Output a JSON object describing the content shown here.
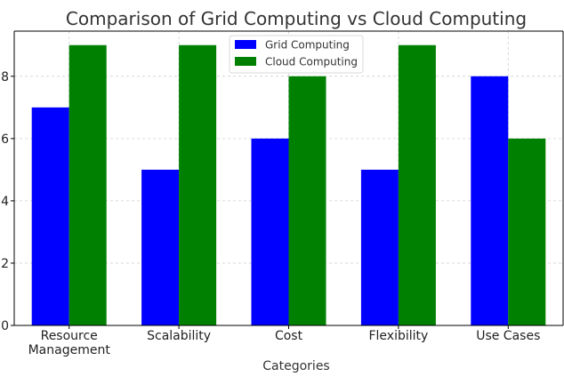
{
  "chart_data": {
    "type": "bar",
    "title": "Comparison of Grid Computing vs Cloud Computing",
    "xlabel": "Categories",
    "ylabel": "",
    "categories": [
      "Resource\nManagement",
      "Scalability",
      "Cost",
      "Flexibility",
      "Use Cases"
    ],
    "series": [
      {
        "name": "Grid Computing",
        "values": [
          7,
          5,
          6,
          5,
          8
        ],
        "color": "#0000ff"
      },
      {
        "name": "Cloud Computing",
        "values": [
          9,
          9,
          8,
          9,
          6
        ],
        "color": "#008000"
      }
    ],
    "ylim": [
      0,
      9.45
    ],
    "yticks": [
      0,
      2,
      4,
      6,
      8
    ],
    "grid": true,
    "legend_position": "top-center"
  }
}
